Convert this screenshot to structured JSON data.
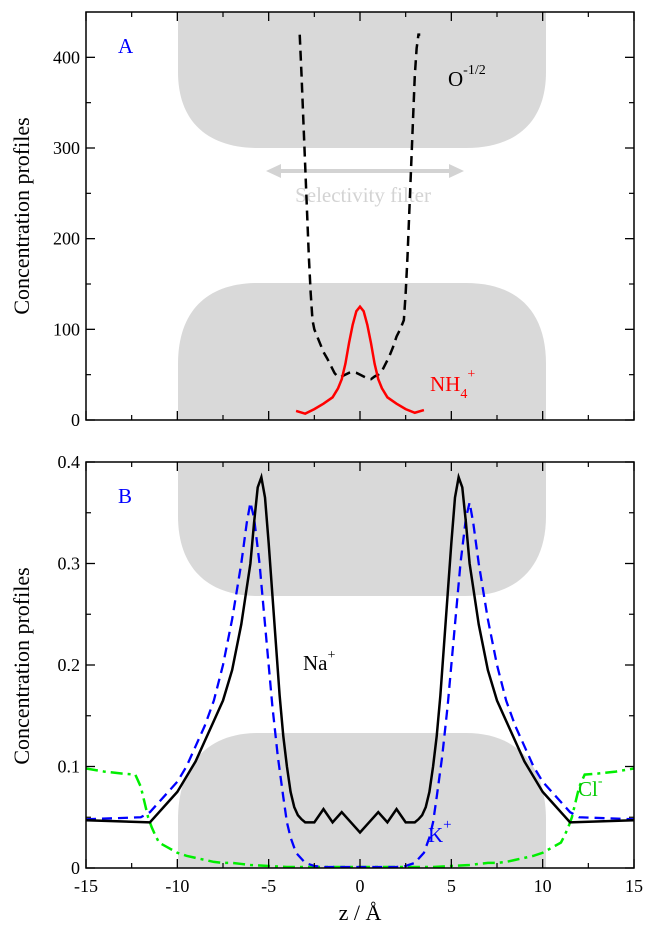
{
  "chart_data": [
    {
      "panel": "A",
      "type": "line",
      "panel_label": "A",
      "xlabel": "",
      "ylabel": "Concentration profiles",
      "xlim": [
        -15,
        15
      ],
      "ylim": [
        0,
        450
      ],
      "x_ticks": [
        "-15",
        "-10",
        "-5",
        "0",
        "5",
        "10",
        "15"
      ],
      "y_ticks": [
        "0",
        "100",
        "200",
        "300",
        "400"
      ],
      "grid": false,
      "annotations": {
        "oxygen_base": "O",
        "oxygen_sup": "-1/2",
        "nh4_base": "NH",
        "nh4_sub": "4",
        "nh4_sup": "+",
        "filter_label": "Selectivity filter"
      },
      "colors": {
        "oxygen": "#000000",
        "nh4": "#ff0000",
        "label": "#0000ff",
        "shading": "#d9d9d9",
        "arrow": "#d3d3d3"
      },
      "series": [
        {
          "name": "O-1/2",
          "style": "dashed",
          "x": [
            -3.3,
            -3.2,
            -3.1,
            -3.0,
            -2.9,
            -2.8,
            -2.7,
            -2.6,
            -2.5,
            -2.4,
            -2.2,
            -2.0,
            -1.8,
            -1.6,
            -1.4,
            -1.2,
            -1.0,
            -0.8,
            -0.6,
            -0.4,
            -0.2,
            0.0,
            0.2,
            0.4,
            0.6,
            0.8,
            1.0,
            1.2,
            1.4,
            1.6,
            1.8,
            2.0,
            2.2,
            2.4,
            2.5,
            2.6,
            2.7,
            2.8,
            2.9,
            3.0,
            3.1,
            3.2,
            3.3
          ],
          "y": [
            425,
            380,
            330,
            280,
            230,
            180,
            140,
            110,
            100,
            95,
            85,
            75,
            68,
            60,
            52,
            47,
            48,
            50,
            52,
            53,
            52,
            50,
            48,
            46,
            45,
            48,
            50,
            54,
            62,
            70,
            80,
            92,
            100,
            110,
            140,
            180,
            230,
            280,
            330,
            380,
            410,
            425,
            425
          ]
        },
        {
          "name": "NH4+",
          "style": "solid",
          "x": [
            -3.5,
            -3.0,
            -2.5,
            -2.0,
            -1.5,
            -1.2,
            -1.0,
            -0.8,
            -0.6,
            -0.4,
            -0.2,
            0.0,
            0.2,
            0.4,
            0.6,
            0.8,
            1.0,
            1.2,
            1.5,
            2.0,
            2.5,
            3.0,
            3.5
          ],
          "y": [
            10,
            7,
            12,
            18,
            25,
            35,
            45,
            62,
            85,
            105,
            120,
            125,
            120,
            105,
            85,
            62,
            45,
            35,
            25,
            18,
            12,
            8,
            11
          ]
        }
      ]
    },
    {
      "panel": "B",
      "type": "line",
      "panel_label": "B",
      "xlabel": "z / Å",
      "ylabel": "Concentration profiles",
      "xlim": [
        -15,
        15
      ],
      "ylim": [
        0,
        0.4
      ],
      "x_ticks": [
        "-15",
        "-10",
        "-5",
        "0",
        "5",
        "10",
        "15"
      ],
      "y_ticks": [
        "0",
        "0.1",
        "0.2",
        "0.3",
        "0.4"
      ],
      "grid": false,
      "annotations": {
        "na_base": "Na",
        "na_sup": "+",
        "k_base": "K",
        "k_sup": "+",
        "cl_base": "Cl",
        "cl_sup": "-"
      },
      "colors": {
        "na": "#000000",
        "k": "#0000ff",
        "cl": "#00ee00",
        "label": "#0000ff",
        "shading": "#d9d9d9"
      },
      "series": [
        {
          "name": "Na+",
          "style": "solid",
          "x": [
            -15,
            -11.5,
            -11,
            -10.5,
            -10,
            -9.5,
            -9,
            -8.5,
            -8,
            -7.5,
            -7,
            -6.5,
            -6,
            -5.8,
            -5.6,
            -5.4,
            -5.2,
            -5,
            -4.8,
            -4.6,
            -4.4,
            -4.2,
            -4,
            -3.8,
            -3.6,
            -3.4,
            -3.2,
            -3,
            -2.5,
            -2,
            -1.5,
            -1,
            -0.5,
            0,
            0.5,
            1,
            1.5,
            2,
            2.5,
            3,
            3.2,
            3.4,
            3.6,
            3.8,
            4,
            4.2,
            4.4,
            4.6,
            4.8,
            5,
            5.2,
            5.4,
            5.6,
            5.8,
            6,
            6.5,
            7,
            7.5,
            8,
            8.5,
            9,
            9.5,
            10,
            10.5,
            11,
            11.5,
            15
          ],
          "y": [
            0.047,
            0.045,
            0.055,
            0.065,
            0.075,
            0.09,
            0.105,
            0.125,
            0.145,
            0.165,
            0.195,
            0.24,
            0.3,
            0.34,
            0.375,
            0.385,
            0.365,
            0.32,
            0.27,
            0.22,
            0.17,
            0.13,
            0.1,
            0.075,
            0.06,
            0.052,
            0.048,
            0.045,
            0.045,
            0.058,
            0.045,
            0.055,
            0.045,
            0.035,
            0.045,
            0.055,
            0.045,
            0.058,
            0.045,
            0.045,
            0.048,
            0.052,
            0.06,
            0.075,
            0.1,
            0.13,
            0.17,
            0.22,
            0.27,
            0.32,
            0.365,
            0.385,
            0.375,
            0.34,
            0.3,
            0.24,
            0.195,
            0.165,
            0.145,
            0.125,
            0.105,
            0.09,
            0.075,
            0.065,
            0.055,
            0.045,
            0.047
          ]
        },
        {
          "name": "K+",
          "style": "dashed",
          "x": [
            -15,
            -12,
            -11.5,
            -11,
            -10.5,
            -10,
            -9.5,
            -9,
            -8.5,
            -8,
            -7.5,
            -7,
            -6.5,
            -6.2,
            -6,
            -5.8,
            -5.5,
            -5.2,
            -5,
            -4.8,
            -4.5,
            -4.2,
            -4,
            -3.8,
            -3.5,
            -3,
            -2.5,
            -2,
            0,
            2,
            2.5,
            3,
            3.5,
            3.8,
            4,
            4.2,
            4.5,
            4.8,
            5,
            5.2,
            5.5,
            5.8,
            6,
            6.2,
            6.5,
            7,
            7.5,
            8,
            8.5,
            9,
            9.5,
            10,
            10.5,
            11,
            11.5,
            12,
            15
          ],
          "y": [
            0.048,
            0.05,
            0.055,
            0.065,
            0.075,
            0.085,
            0.1,
            0.12,
            0.14,
            0.165,
            0.2,
            0.245,
            0.3,
            0.34,
            0.36,
            0.345,
            0.3,
            0.24,
            0.2,
            0.16,
            0.11,
            0.07,
            0.045,
            0.03,
            0.015,
            0.005,
            0.002,
            0.001,
            0.001,
            0.001,
            0.002,
            0.005,
            0.015,
            0.03,
            0.045,
            0.07,
            0.11,
            0.16,
            0.2,
            0.24,
            0.3,
            0.345,
            0.36,
            0.34,
            0.3,
            0.245,
            0.2,
            0.165,
            0.14,
            0.12,
            0.1,
            0.085,
            0.075,
            0.065,
            0.055,
            0.05,
            0.048
          ]
        },
        {
          "name": "Cl-",
          "style": "dashdot",
          "x": [
            -15,
            -14,
            -13,
            -12.3,
            -12,
            -11.8,
            -11.6,
            -11.4,
            -11.2,
            -11,
            -10.5,
            -10,
            -9.5,
            -9,
            -8.5,
            -8,
            -7.5,
            -7,
            -6.5,
            -6,
            -5,
            -4,
            -3,
            -2,
            -1,
            0,
            1,
            2,
            3,
            4,
            5,
            6,
            6.5,
            7,
            7.5,
            8,
            8.5,
            9,
            9.5,
            10,
            10.5,
            11,
            11.2,
            11.4,
            11.6,
            11.8,
            12,
            12.3,
            13,
            14,
            15
          ],
          "y": [
            0.098,
            0.095,
            0.093,
            0.092,
            0.08,
            0.065,
            0.05,
            0.04,
            0.032,
            0.025,
            0.02,
            0.015,
            0.012,
            0.01,
            0.008,
            0.006,
            0.005,
            0.005,
            0.004,
            0.003,
            0.002,
            0.001,
            0.001,
            0.001,
            0.001,
            0.001,
            0.001,
            0.001,
            0.001,
            0.001,
            0.002,
            0.003,
            0.004,
            0.005,
            0.005,
            0.006,
            0.008,
            0.01,
            0.012,
            0.015,
            0.02,
            0.025,
            0.032,
            0.04,
            0.05,
            0.065,
            0.08,
            0.092,
            0.093,
            0.095,
            0.098
          ]
        }
      ]
    }
  ]
}
